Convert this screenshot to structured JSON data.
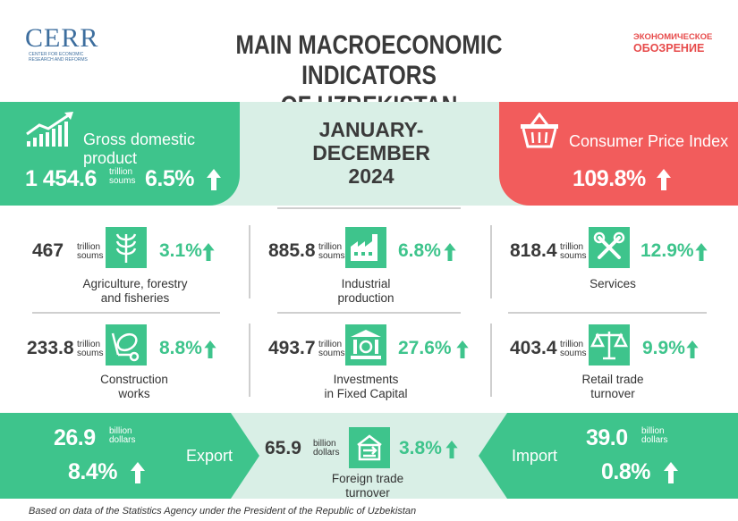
{
  "header": {
    "title_line1": "MAIN MACROECONOMIC INDICATORS",
    "title_line2": "OF UZBEKISTAN",
    "logo_left": "CERR",
    "logo_left_sub1": "CENTER FOR ECONOMIC",
    "logo_left_sub2": "RESEARCH AND REFORMS",
    "logo_right_line1": "ЭКОНОМИЧЕСКОЕ",
    "logo_right_line2": "ОБОЗРЕНИЕ"
  },
  "period": {
    "line1": "JANUARY-DECEMBER",
    "line2": "2024"
  },
  "gdp": {
    "label": "Gross domestic product",
    "value": "1 454.6",
    "unit1": "trillion",
    "unit2": "soums",
    "growth": "6.5%"
  },
  "cpi": {
    "label": "Consumer Price Index",
    "value": "109.8%"
  },
  "sectors": [
    {
      "value": "467",
      "unit1": "trillion",
      "unit2": "soums",
      "growth": "3.1%",
      "cap1": "Agriculture, forestry",
      "cap2": "and fisheries",
      "icon": "wheat-icon"
    },
    {
      "value": "885.8",
      "unit1": "trillion",
      "unit2": "soums",
      "growth": "6.8%",
      "cap1": "Industrial",
      "cap2": "production",
      "icon": "factory-icon"
    },
    {
      "value": "818.4",
      "unit1": "trillion",
      "unit2": "soums",
      "growth": "12.9%",
      "cap1": "Services",
      "cap2": "",
      "icon": "tools-icon"
    },
    {
      "value": "233.8",
      "unit1": "trillion",
      "unit2": "soums",
      "growth": "8.8%",
      "cap1": "Construction",
      "cap2": "works",
      "icon": "mixer-icon"
    },
    {
      "value": "493.7",
      "unit1": "trillion",
      "unit2": "soums",
      "growth": "27.6%",
      "cap1": "Investments",
      "cap2": "in Fixed Capital",
      "icon": "bank-icon"
    },
    {
      "value": "403.4",
      "unit1": "trillion",
      "unit2": "soums",
      "growth": "9.9%",
      "cap1": "Retail trade",
      "cap2": "turnover",
      "icon": "scales-icon"
    }
  ],
  "export": {
    "label": "Export",
    "value": "26.9",
    "unit1": "billion",
    "unit2": "dollars",
    "growth": "8.4%"
  },
  "trade": {
    "value": "65.9",
    "unit1": "billion",
    "unit2": "dollars",
    "growth": "3.8%",
    "cap1": "Foreign trade",
    "cap2": "turnover"
  },
  "import": {
    "label": "Import",
    "value": "39.0",
    "unit1": "billion",
    "unit2": "dollars",
    "growth": "0.8%"
  },
  "footnote": "Based on data of the Statistics Agency under the President of the Republic of Uzbekistan",
  "colors": {
    "green": "#3ec48c",
    "red": "#f25c5c",
    "mint": "#d9efe6",
    "dark": "#3a3a3a"
  }
}
